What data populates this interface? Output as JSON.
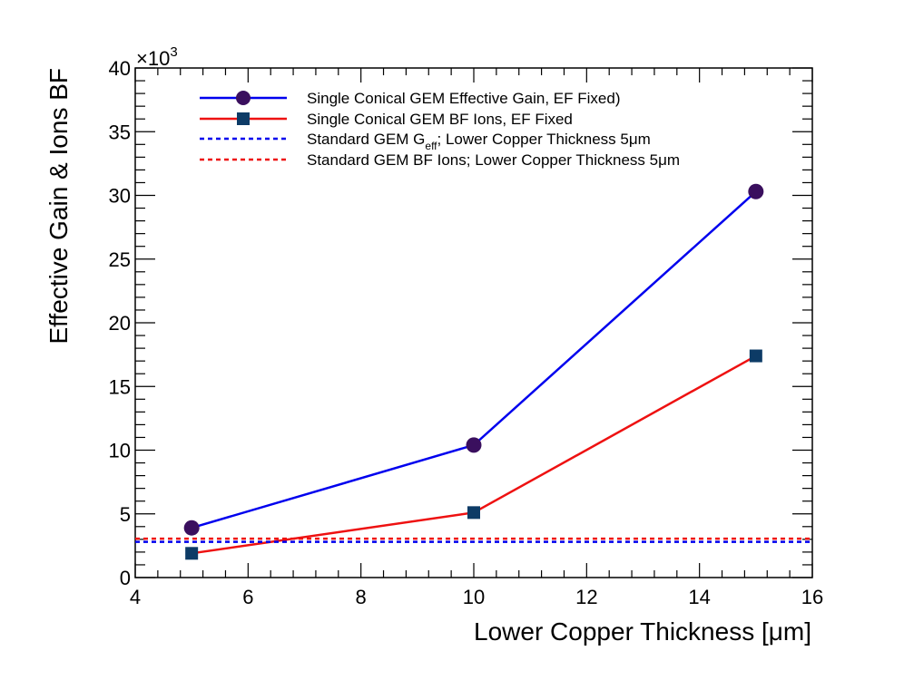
{
  "chart_data": {
    "type": "line",
    "xlabel": "Lower Copper Thickness [μm]",
    "ylabel": "Effective Gain & Ions BF",
    "y_multiplier_label": "×10",
    "y_multiplier_exponent": "3",
    "xlim": [
      4,
      16
    ],
    "ylim": [
      0,
      40
    ],
    "x_ticks": [
      4,
      6,
      8,
      10,
      12,
      14,
      16
    ],
    "y_ticks": [
      0,
      5,
      10,
      15,
      20,
      25,
      30,
      35,
      40
    ],
    "grid": false,
    "legend_position": "top",
    "series": [
      {
        "name": "Single Conical GEM Effective Gain, EF Fixed)",
        "color": "#0000ee",
        "marker": "circle",
        "marker_color": "#3a0f5e",
        "style": "solid",
        "x": [
          5,
          10,
          15
        ],
        "y": [
          3.9,
          10.4,
          30.3
        ]
      },
      {
        "name": "Single Conical GEM BF Ions, EF Fixed",
        "color": "#ee1111",
        "marker": "square",
        "marker_color": "#0d3b66",
        "style": "solid",
        "x": [
          5,
          10,
          15
        ],
        "y": [
          1.9,
          5.1,
          17.4
        ]
      },
      {
        "name_prefix": "Standard GEM G",
        "name_sub": "eff",
        "name_suffix": "; Lower Copper Thickness 5μm",
        "color": "#0000ee",
        "style": "dashed",
        "constant_y": 2.8
      },
      {
        "name": "Standard GEM BF Ions; Lower Copper Thickness 5μm",
        "color": "#ee1111",
        "style": "dashed",
        "constant_y": 3.05
      }
    ]
  }
}
